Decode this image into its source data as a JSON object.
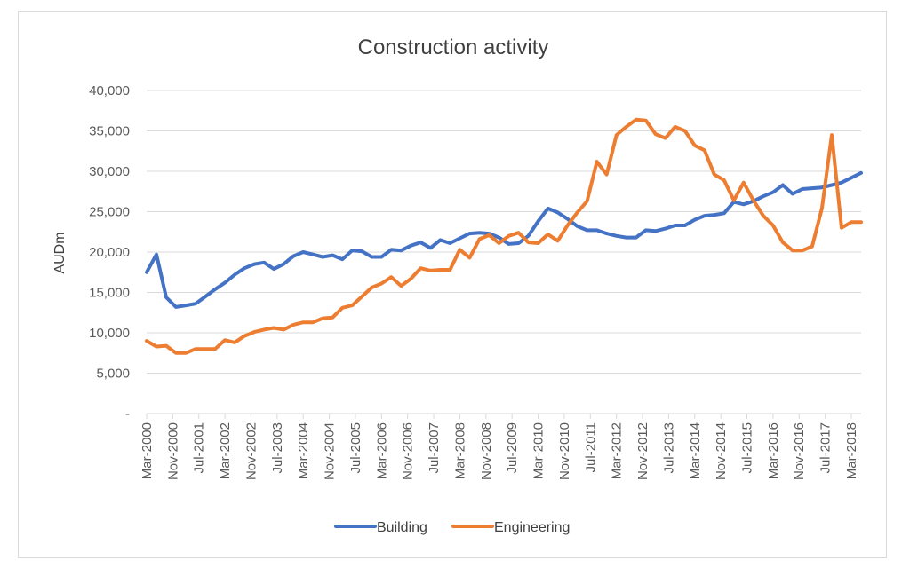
{
  "chart_data": {
    "type": "line",
    "title": "Construction activity",
    "xlabel": "",
    "ylabel": "AUDm",
    "ylim": [
      0,
      40000
    ],
    "yticks": [
      0,
      5000,
      10000,
      15000,
      20000,
      25000,
      30000,
      35000,
      40000
    ],
    "ytick_labels": [
      "-",
      "5,000",
      "10,000",
      "15,000",
      "20,000",
      "25,000",
      "30,000",
      "35,000",
      "40,000"
    ],
    "grid": true,
    "legend_position": "bottom",
    "x": [
      "Mar-2000",
      "Jun-2000",
      "Sep-2000",
      "Dec-2000",
      "Mar-2001",
      "Jun-2001",
      "Sep-2001",
      "Dec-2001",
      "Mar-2002",
      "Jun-2002",
      "Sep-2002",
      "Dec-2002",
      "Mar-2003",
      "Jun-2003",
      "Sep-2003",
      "Dec-2003",
      "Mar-2004",
      "Jun-2004",
      "Sep-2004",
      "Dec-2004",
      "Mar-2005",
      "Jun-2005",
      "Sep-2005",
      "Dec-2005",
      "Mar-2006",
      "Jun-2006",
      "Sep-2006",
      "Dec-2006",
      "Mar-2007",
      "Jun-2007",
      "Sep-2007",
      "Dec-2007",
      "Mar-2008",
      "Jun-2008",
      "Sep-2008",
      "Dec-2008",
      "Mar-2009",
      "Jun-2009",
      "Sep-2009",
      "Dec-2009",
      "Mar-2010",
      "Jun-2010",
      "Sep-2010",
      "Dec-2010",
      "Mar-2011",
      "Jun-2011",
      "Sep-2011",
      "Dec-2011",
      "Mar-2012",
      "Jun-2012",
      "Sep-2012",
      "Dec-2012",
      "Mar-2013",
      "Jun-2013",
      "Sep-2013",
      "Dec-2013",
      "Mar-2014",
      "Jun-2014",
      "Sep-2014",
      "Dec-2014",
      "Mar-2015",
      "Jun-2015",
      "Sep-2015",
      "Dec-2015",
      "Mar-2016",
      "Jun-2016",
      "Sep-2016",
      "Dec-2016",
      "Mar-2017",
      "Jun-2017",
      "Sep-2017",
      "Dec-2017",
      "Mar-2018",
      "Jun-2018"
    ],
    "tick_labels": [
      "Mar-2000",
      "Nov-2000",
      "Jul-2001",
      "Mar-2002",
      "Nov-2002",
      "Jul-2003",
      "Mar-2004",
      "Nov-2004",
      "Jul-2005",
      "Mar-2006",
      "Nov-2006",
      "Jul-2007",
      "Mar-2008",
      "Nov-2008",
      "Jul-2009",
      "Mar-2010",
      "Nov-2010",
      "Jul-2011",
      "Mar-2012",
      "Nov-2012",
      "Jul-2013",
      "Mar-2014",
      "Nov-2014",
      "Jul-2015",
      "Mar-2016",
      "Nov-2016",
      "Jul-2017",
      "Mar-2018"
    ],
    "series": [
      {
        "name": "Building",
        "color": "#4472c4",
        "values": [
          17500,
          19700,
          14400,
          13200,
          13400,
          13600,
          14500,
          15400,
          16200,
          17200,
          18000,
          18500,
          18700,
          17900,
          18500,
          19500,
          20000,
          19700,
          19400,
          19600,
          19100,
          20200,
          20100,
          19400,
          19400,
          20300,
          20200,
          20800,
          21200,
          20500,
          21500,
          21100,
          21700,
          22300,
          22400,
          22300,
          21800,
          21000,
          21100,
          22000,
          23800,
          25400,
          24900,
          24100,
          23200,
          22700,
          22700,
          22300,
          22000,
          21800,
          21800,
          22700,
          22600,
          22900,
          23300,
          23300,
          24000,
          24500,
          24600,
          24800,
          26200,
          25900,
          26300,
          26900,
          27400,
          28300,
          27200,
          27800,
          27900,
          28000,
          28300,
          28600,
          29200,
          29800
        ]
      },
      {
        "name": "Engineering",
        "color": "#ed7d31",
        "values": [
          9000,
          8300,
          8400,
          7500,
          7500,
          8000,
          8000,
          8000,
          9100,
          8800,
          9600,
          10100,
          10400,
          10600,
          10400,
          11000,
          11300,
          11300,
          11800,
          11900,
          13100,
          13400,
          14500,
          15600,
          16100,
          16900,
          15800,
          16700,
          18000,
          17700,
          17800,
          17800,
          20300,
          19300,
          21600,
          22100,
          21100,
          22000,
          22400,
          21200,
          21100,
          22200,
          21400,
          23300,
          24900,
          26300,
          31200,
          29600,
          34500,
          35500,
          36400,
          36300,
          34600,
          34100,
          35500,
          35000,
          33200,
          32600,
          29600,
          28900,
          26400,
          28600,
          26400,
          24500,
          23300,
          21200,
          20200,
          20200,
          20700,
          25400,
          34500,
          23000,
          23700,
          23700
        ]
      }
    ]
  }
}
